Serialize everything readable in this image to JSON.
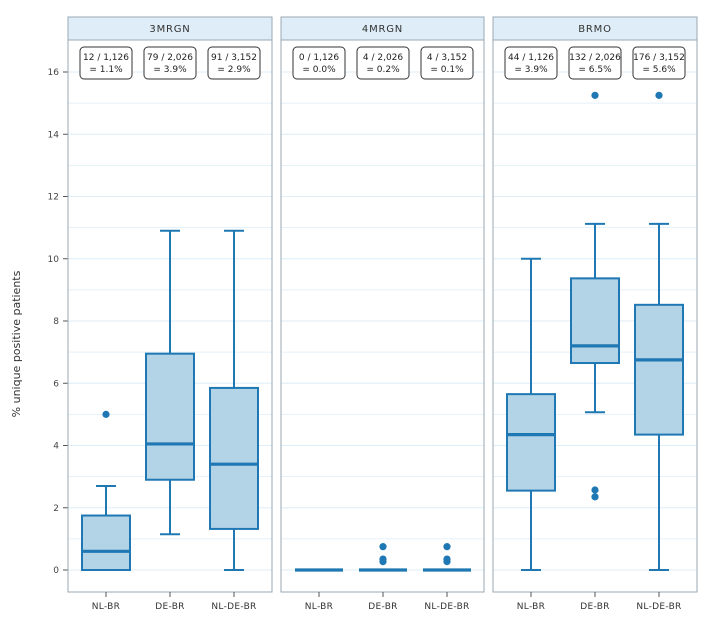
{
  "chart_data": {
    "type": "box",
    "ylabel": "% unique positive patients",
    "ylim": [
      -0.7,
      17.3
    ],
    "yticks": [
      0,
      2,
      4,
      6,
      8,
      10,
      12,
      14,
      16
    ],
    "grid": true,
    "colors": {
      "box_fill": "#b3d3e6",
      "box_line": "#1f78b4",
      "strip_fill": "#deedf7",
      "grid": "#ddeef8",
      "frame": "#9aa9b3"
    },
    "categories": [
      "NL-BR",
      "DE-BR",
      "NL-DE-BR"
    ],
    "facets": [
      {
        "name": "3MRGN",
        "boxes": [
          {
            "category": "NL-BR",
            "min": 0,
            "q1": 0,
            "median": 0.6,
            "q3": 1.75,
            "max": 2.7,
            "outliers": [
              5.0
            ],
            "annotation": [
              "12 / 1,126",
              "= 1.1%"
            ]
          },
          {
            "category": "DE-BR",
            "min": 1.15,
            "q1": 2.9,
            "median": 4.05,
            "q3": 6.95,
            "max": 10.9,
            "outliers": [],
            "annotation": [
              "79 / 2,026",
              "= 3.9%"
            ]
          },
          {
            "category": "NL-DE-BR",
            "min": 0,
            "q1": 1.32,
            "median": 3.4,
            "q3": 5.85,
            "max": 10.9,
            "outliers": [],
            "annotation": [
              "91 / 3,152",
              "= 2.9%"
            ]
          }
        ]
      },
      {
        "name": "4MRGN",
        "boxes": [
          {
            "category": "NL-BR",
            "min": 0,
            "q1": 0,
            "median": 0,
            "q3": 0,
            "max": 0,
            "outliers": [],
            "annotation": [
              "0 / 1,126",
              "= 0.0%"
            ]
          },
          {
            "category": "DE-BR",
            "min": 0,
            "q1": 0,
            "median": 0,
            "q3": 0,
            "max": 0,
            "outliers": [
              0.27,
              0.35,
              0.75
            ],
            "annotation": [
              "4 / 2,026",
              "= 0.2%"
            ]
          },
          {
            "category": "NL-DE-BR",
            "min": 0,
            "q1": 0,
            "median": 0,
            "q3": 0,
            "max": 0,
            "outliers": [
              0.27,
              0.35,
              0.75
            ],
            "annotation": [
              "4 / 3,152",
              "= 0.1%"
            ]
          }
        ]
      },
      {
        "name": "BRMO",
        "boxes": [
          {
            "category": "NL-BR",
            "min": 0,
            "q1": 2.55,
            "median": 4.35,
            "q3": 5.65,
            "max": 10.0,
            "outliers": [],
            "annotation": [
              "44 / 1,126",
              "= 3.9%"
            ]
          },
          {
            "category": "DE-BR",
            "min": 5.07,
            "q1": 6.65,
            "median": 7.2,
            "q3": 9.37,
            "max": 11.12,
            "outliers": [
              2.35,
              2.57,
              15.25
            ],
            "annotation": [
              "132 / 2,026",
              "= 6.5%"
            ]
          },
          {
            "category": "NL-DE-BR",
            "min": 0,
            "q1": 4.35,
            "median": 6.75,
            "q3": 8.52,
            "max": 11.12,
            "outliers": [
              15.25
            ],
            "annotation": [
              "176 / 3,152",
              "= 5.6%"
            ]
          }
        ]
      }
    ]
  }
}
